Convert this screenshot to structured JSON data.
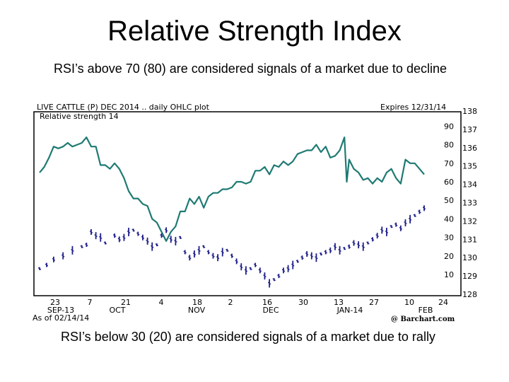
{
  "slide": {
    "title": "Relative Strength Index",
    "top_note": "RSI’s above 70 (80) are considered signals of a market due to decline",
    "bottom_note": "RSI’s below 30 (20) are considered signals of a market due to rally"
  },
  "chart_data": {
    "type": "line",
    "title": "LIVE CATTLE (P) DEC 2014 .. daily OHLC plot",
    "subtitle": "Relative strength 14",
    "expires_label": "Expires 12/31/14",
    "as_of_label": "As of 02/14/14",
    "credit": "@ Barchart.com",
    "x_day_ticks": [
      "23",
      "7",
      "21",
      "4",
      "18",
      "2",
      "16",
      "30",
      "13",
      "27",
      "10",
      "24"
    ],
    "x_month_labels": [
      "SEP-13",
      "OCT",
      "NOV",
      "DEC",
      "JAN-14",
      "FEB"
    ],
    "y_rsi_ticks": [
      90,
      80,
      70,
      60,
      50,
      40,
      30,
      20,
      10
    ],
    "y_price_ticks": [
      138,
      137,
      136,
      135,
      134,
      133,
      132,
      131,
      130,
      129,
      128
    ],
    "colors": {
      "rsi": "#1f7a73",
      "price": "#1f1f8a",
      "frame": "#000000"
    },
    "series": [
      {
        "values": [
          [
            0,
            65
          ],
          [
            2,
            68
          ],
          [
            4,
            73
          ],
          [
            6,
            79
          ],
          [
            8,
            78
          ],
          [
            10,
            79
          ],
          [
            12,
            81
          ],
          [
            14,
            79
          ],
          [
            16,
            80
          ],
          [
            18,
            81
          ],
          [
            20,
            84
          ],
          [
            22,
            79
          ],
          [
            24,
            79
          ],
          [
            26,
            69
          ],
          [
            28,
            69
          ],
          [
            30,
            67
          ],
          [
            32,
            70
          ],
          [
            34,
            67
          ],
          [
            36,
            62
          ],
          [
            38,
            55
          ],
          [
            40,
            51
          ],
          [
            42,
            51
          ],
          [
            44,
            48
          ],
          [
            46,
            47
          ],
          [
            48,
            40
          ],
          [
            50,
            38
          ],
          [
            52,
            33
          ],
          [
            54,
            28
          ],
          [
            56,
            33
          ],
          [
            58,
            36
          ],
          [
            60,
            44
          ],
          [
            62,
            44
          ],
          [
            64,
            51
          ],
          [
            66,
            48
          ],
          [
            68,
            52
          ],
          [
            70,
            46
          ],
          [
            72,
            52
          ],
          [
            74,
            54
          ],
          [
            76,
            54
          ],
          [
            78,
            56
          ],
          [
            80,
            56
          ],
          [
            82,
            57
          ],
          [
            84,
            60
          ],
          [
            86,
            60
          ],
          [
            88,
            59
          ],
          [
            90,
            60
          ],
          [
            92,
            66
          ],
          [
            94,
            66
          ],
          [
            96,
            68
          ],
          [
            98,
            64
          ],
          [
            100,
            69
          ],
          [
            102,
            68
          ],
          [
            104,
            71
          ],
          [
            106,
            69
          ],
          [
            108,
            71
          ],
          [
            110,
            75
          ],
          [
            112,
            76
          ],
          [
            114,
            77
          ],
          [
            116,
            77
          ],
          [
            118,
            80
          ],
          [
            120,
            76
          ],
          [
            122,
            79
          ],
          [
            124,
            73
          ],
          [
            126,
            74
          ],
          [
            128,
            77
          ],
          [
            130,
            84
          ],
          [
            131,
            60
          ],
          [
            132,
            72
          ],
          [
            134,
            67
          ],
          [
            136,
            65
          ],
          [
            138,
            61
          ],
          [
            140,
            62
          ],
          [
            142,
            59
          ],
          [
            144,
            62
          ],
          [
            146,
            60
          ],
          [
            148,
            65
          ],
          [
            150,
            67
          ],
          [
            152,
            62
          ],
          [
            154,
            59
          ],
          [
            156,
            72
          ],
          [
            158,
            70
          ],
          [
            160,
            70
          ],
          [
            162,
            67
          ],
          [
            164,
            64
          ]
        ]
      },
      {
        "values": [
          [
            0,
            129.4
          ],
          [
            3,
            129.6
          ],
          [
            6,
            129.9
          ],
          [
            10,
            130.1
          ],
          [
            14,
            130.4
          ],
          [
            18,
            130.6
          ],
          [
            20,
            130.7
          ],
          [
            22,
            131.4
          ],
          [
            24,
            131.2
          ],
          [
            26,
            131.1
          ],
          [
            28,
            130.8
          ],
          [
            32,
            131.2
          ],
          [
            34,
            131.0
          ],
          [
            36,
            131.1
          ],
          [
            38,
            131.4
          ],
          [
            40,
            131.5
          ],
          [
            42,
            131.3
          ],
          [
            44,
            131.1
          ],
          [
            46,
            130.9
          ],
          [
            48,
            130.6
          ],
          [
            50,
            130.7
          ],
          [
            52,
            131.2
          ],
          [
            54,
            131.5
          ],
          [
            56,
            131.0
          ],
          [
            58,
            130.9
          ],
          [
            60,
            131.1
          ],
          [
            62,
            130.3
          ],
          [
            64,
            130.0
          ],
          [
            66,
            130.2
          ],
          [
            68,
            130.4
          ],
          [
            70,
            130.6
          ],
          [
            72,
            130.3
          ],
          [
            74,
            130.1
          ],
          [
            76,
            130.0
          ],
          [
            78,
            130.3
          ],
          [
            80,
            130.4
          ],
          [
            82,
            130.1
          ],
          [
            84,
            129.8
          ],
          [
            86,
            129.5
          ],
          [
            88,
            129.3
          ],
          [
            90,
            129.4
          ],
          [
            92,
            129.6
          ],
          [
            94,
            129.3
          ],
          [
            96,
            129.0
          ],
          [
            98,
            128.6
          ],
          [
            100,
            128.8
          ],
          [
            102,
            129.0
          ],
          [
            104,
            129.3
          ],
          [
            106,
            129.4
          ],
          [
            108,
            129.6
          ],
          [
            110,
            129.8
          ],
          [
            112,
            130.0
          ],
          [
            114,
            130.2
          ],
          [
            116,
            130.1
          ],
          [
            118,
            130.0
          ],
          [
            120,
            130.2
          ],
          [
            122,
            130.3
          ],
          [
            124,
            130.4
          ],
          [
            126,
            130.6
          ],
          [
            128,
            130.4
          ],
          [
            130,
            130.5
          ],
          [
            132,
            130.6
          ],
          [
            134,
            130.8
          ],
          [
            136,
            130.7
          ],
          [
            138,
            130.6
          ],
          [
            140,
            130.8
          ],
          [
            142,
            131.0
          ],
          [
            144,
            131.2
          ],
          [
            146,
            131.5
          ],
          [
            148,
            131.4
          ],
          [
            150,
            131.7
          ],
          [
            152,
            131.8
          ],
          [
            154,
            131.6
          ],
          [
            156,
            131.9
          ],
          [
            158,
            132.1
          ],
          [
            160,
            132.3
          ],
          [
            162,
            132.5
          ],
          [
            164,
            132.7
          ]
        ]
      }
    ]
  }
}
